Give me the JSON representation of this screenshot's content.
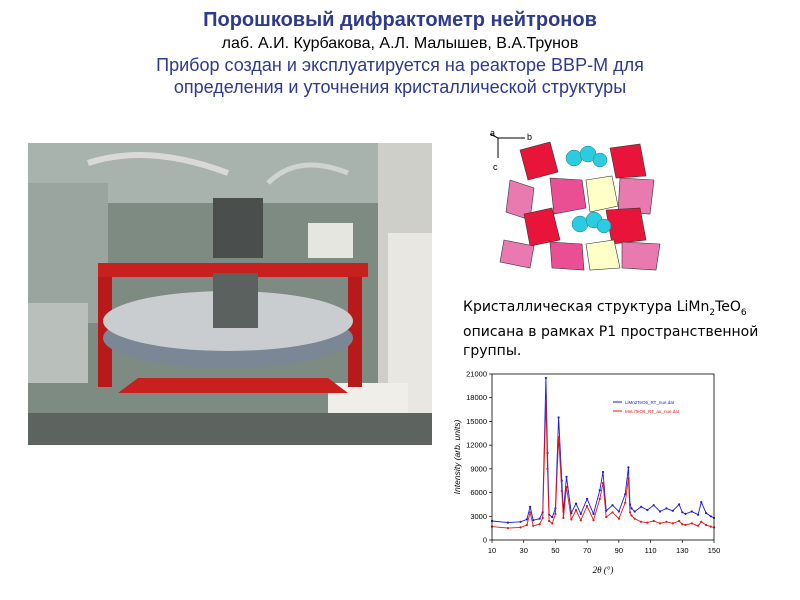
{
  "header": {
    "title": "Порошковый дифрактометр нейтронов",
    "authors": "лаб. А.И. Курбакова, А.Л. Малышев, В.А.Трунов",
    "subtitle_line1": "Прибор создан и эксплуатируется на реакторе ВВР-М для",
    "subtitle_line2": "определения и уточнения кристаллической структуры"
  },
  "caption": {
    "prefix": "Кристаллическая структура ",
    "formula_li_mn": "LiMn",
    "formula_sub1": "2",
    "formula_te_o": "TeO",
    "formula_sub2": "6",
    "rest": " описана в рамках P1 пространственной группы."
  },
  "crystal": {
    "axis_a": "a",
    "axis_b": "b",
    "axis_c": "c"
  },
  "chart_data": {
    "type": "line",
    "xlabel": "2θ (°)",
    "ylabel": "Intensity (arb. units)",
    "xlim": [
      10,
      150
    ],
    "ylim": [
      0,
      21000
    ],
    "x_ticks": [
      10,
      30,
      50,
      70,
      90,
      110,
      130,
      150
    ],
    "y_ticks": [
      0,
      3000,
      6000,
      9000,
      12000,
      15000,
      18000,
      21000
    ],
    "series": [
      {
        "name": "LiMn2TeO6_RT_nue.dat",
        "color": "#1a1adc",
        "x": [
          10,
          20,
          28,
          32,
          34,
          36,
          40,
          42,
          44,
          45,
          46,
          48,
          50,
          52,
          54,
          55,
          57,
          60,
          63,
          66,
          70,
          74,
          78,
          80,
          82,
          86,
          90,
          94,
          96,
          97,
          98,
          100,
          104,
          108,
          112,
          116,
          120,
          124,
          128,
          130,
          132,
          136,
          140,
          142,
          145,
          148,
          150
        ],
        "y": [
          2400,
          2200,
          2300,
          2600,
          4200,
          2500,
          2700,
          3500,
          20500,
          11000,
          3200,
          2900,
          4000,
          15500,
          7500,
          3600,
          8000,
          3400,
          4600,
          3300,
          5200,
          3300,
          6300,
          8600,
          3700,
          4400,
          3600,
          5800,
          9200,
          4500,
          4000,
          3600,
          4200,
          3800,
          4400,
          3600,
          4000,
          3700,
          4500,
          3500,
          3300,
          3600,
          3200,
          4800,
          3400,
          3000,
          2800
        ]
      },
      {
        "name": "MnLiTeO6_RT_au_nue.dat",
        "color": "#e01818",
        "x": [
          10,
          20,
          28,
          32,
          34,
          36,
          40,
          42,
          44,
          45,
          46,
          48,
          50,
          52,
          54,
          55,
          57,
          60,
          63,
          66,
          70,
          74,
          78,
          80,
          82,
          86,
          90,
          94,
          96,
          97,
          98,
          100,
          104,
          108,
          112,
          116,
          120,
          124,
          128,
          130,
          132,
          136,
          140,
          142,
          145,
          148,
          150
        ],
        "y": [
          1700,
          1500,
          1600,
          1900,
          3500,
          1800,
          2000,
          2800,
          17500,
          9000,
          2400,
          2100,
          3300,
          13000,
          6200,
          2800,
          6700,
          2600,
          3800,
          2500,
          4300,
          2500,
          5200,
          7200,
          2900,
          3500,
          2700,
          4700,
          7800,
          3500,
          3100,
          2700,
          2300,
          2200,
          2400,
          2100,
          2300,
          2100,
          2400,
          2000,
          1900,
          2100,
          1800,
          2300,
          1900,
          1700,
          1600
        ]
      }
    ],
    "legend": "top-right"
  }
}
